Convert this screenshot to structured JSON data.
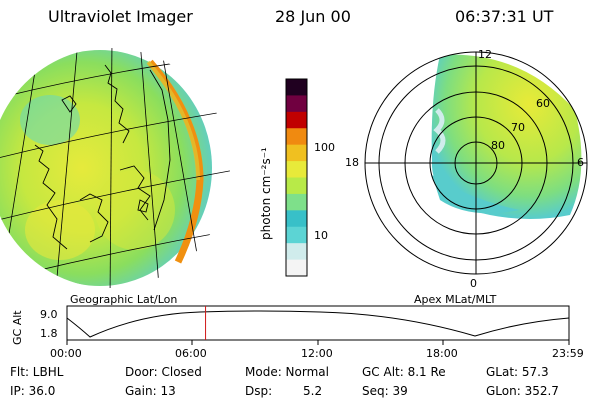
{
  "header": {
    "title": "Ultraviolet Imager",
    "date": "28 Jun 00",
    "time": "06:37:31 UT"
  },
  "left_panel": {
    "caption": "Geographic Lat/Lon",
    "description": "Geographic projection of FUV auroral emission over North America"
  },
  "colorbar": {
    "unit_label": "photon cm⁻²s⁻¹",
    "ticks": [
      "100",
      "10"
    ],
    "colors": [
      "#f4f4f4",
      "#d0ecec",
      "#5cd4d4",
      "#38c0c8",
      "#7ee08a",
      "#b8ea48",
      "#e8ea3a",
      "#f0c020",
      "#f08a10",
      "#c00000",
      "#700040",
      "#200020"
    ]
  },
  "right_panel": {
    "caption": "Apex MLat/MLT",
    "lat_labels": [
      "80",
      "70",
      "60"
    ],
    "mlt_labels": {
      "top": "12",
      "left": "18",
      "right": "6",
      "bottom": "0"
    }
  },
  "timeline": {
    "axis_label": "GC Alt",
    "y_ticks": [
      "9.0",
      "1.8"
    ],
    "x_ticks": [
      "00:00",
      "06:00",
      "12:00",
      "18:00",
      "23:59"
    ],
    "current_fraction": 0.276
  },
  "info": {
    "flt": "Flt: LBHL",
    "ip": "IP: 36.0",
    "door": "Door: Closed",
    "gain": "Gain: 13",
    "mode": "Mode: Normal",
    "dsp_label": "Dsp:",
    "dsp_value": "5.2",
    "gc_alt": "GC Alt: 8.1 Re",
    "seq": "Seq: 39",
    "glat": "GLat: 57.3",
    "glon": "GLon: 352.7"
  },
  "colors": {
    "marker": "#d01818",
    "background": "#ffffff"
  }
}
